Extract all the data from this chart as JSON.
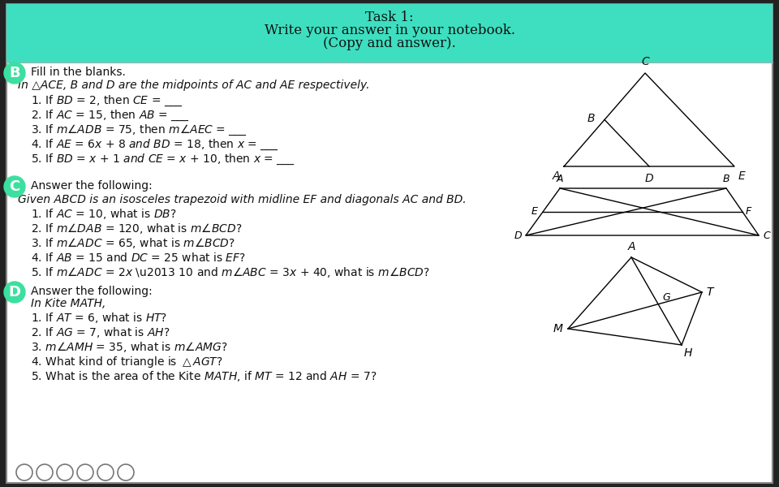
{
  "title_lines": [
    "Task 1:",
    "Write your answer in your notebook.",
    "(Copy and answer)."
  ],
  "title_bg": "#3DDFC0",
  "main_bg": "#FFFFFF",
  "section_B_intro": "Fill in the blanks.",
  "section_B_line1": "In △ACE, B and D are the midpoints of AC and AE respectively.",
  "section_C_intro": "Answer the following:",
  "section_C_line1": "Given ABCD is an isosceles trapezoid with midline EF and diagonals AC and BD.",
  "section_D_intro": "Answer the following:",
  "section_D_line1": "In Kite MATH,",
  "label_bg": "#3DDFA0",
  "text_color": "#111111",
  "title_fontsize": 12,
  "body_fontsize": 10,
  "item_fontsize": 10
}
